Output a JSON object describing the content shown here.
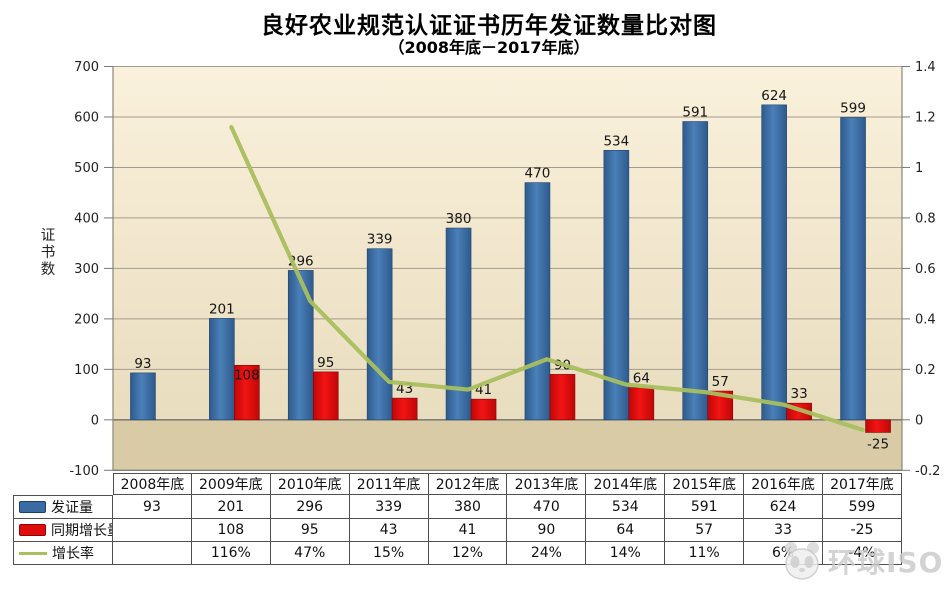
{
  "title": "良好农业规范认证证书历年发证数量比对图",
  "subtitle": "（2008年底－2017年底）",
  "watermark": "环球ISO",
  "colors": {
    "bar_blue": "#3a6ca3",
    "bar_red": "#e00d0d",
    "line_green": "#a9bf5e",
    "plot_bg_top": "#faf1dc",
    "plot_bg_bottom": "#e9ddbf",
    "plot_bg_negative": "#d9cba6",
    "grid": "#a59c8b",
    "zero_line": "#6f6f6f",
    "table_border": "#4f4f4f"
  },
  "chart_data": {
    "type": "bar",
    "title": "良好农业规范认证证书历年发证数量比对图",
    "subtitle": "（2008年底－2017年底）",
    "categories": [
      "2008年底",
      "2009年底",
      "2010年底",
      "2011年底",
      "2012年底",
      "2013年底",
      "2014年底",
      "2015年底",
      "2016年底",
      "2017年底"
    ],
    "series": [
      {
        "name": "发证量",
        "type": "bar",
        "axis": "left",
        "color": "#3a6ca3",
        "values": [
          93,
          201,
          296,
          339,
          380,
          470,
          534,
          591,
          624,
          599
        ]
      },
      {
        "name": "同期增长量",
        "type": "bar",
        "axis": "left",
        "color": "#e00d0d",
        "values": [
          null,
          108,
          95,
          43,
          41,
          90,
          64,
          57,
          33,
          -25
        ]
      },
      {
        "name": "增长率",
        "type": "line",
        "axis": "right",
        "color": "#a9bf5e",
        "values": [
          null,
          1.16,
          0.47,
          0.15,
          0.12,
          0.24,
          0.14,
          0.11,
          0.06,
          -0.04
        ],
        "labels": [
          "",
          "116%",
          "47%",
          "15%",
          "12%",
          "24%",
          "14%",
          "11%",
          "6%",
          "-4%"
        ]
      }
    ],
    "left_axis": {
      "label": "证书数",
      "min": -100,
      "max": 700,
      "step": 100,
      "tick_labels": [
        "700",
        "600",
        "500",
        "400",
        "300",
        "200",
        "100",
        "0",
        "-100"
      ]
    },
    "right_axis": {
      "min": -0.2,
      "max": 1.4,
      "step": 0.2,
      "tick_labels": [
        "1.4",
        "1.2",
        "1",
        "0.8",
        "0.6",
        "0.4",
        "0.2",
        "0",
        "-0.2"
      ]
    },
    "grid": true,
    "legend_position": "table-left"
  },
  "table": {
    "header": [
      "2008年底",
      "2009年底",
      "2010年底",
      "2011年底",
      "2012年底",
      "2013年底",
      "2014年底",
      "2015年底",
      "2016年底",
      "2017年底"
    ],
    "rows": [
      {
        "label": "发证量",
        "swatch": "bar-blue",
        "values": [
          "93",
          "201",
          "296",
          "339",
          "380",
          "470",
          "534",
          "591",
          "624",
          "599"
        ]
      },
      {
        "label": "同期增长量",
        "swatch": "bar-red",
        "values": [
          "",
          "108",
          "95",
          "43",
          "41",
          "90",
          "64",
          "57",
          "33",
          "-25"
        ]
      },
      {
        "label": "增长率",
        "swatch": "line-green",
        "values": [
          "",
          "116%",
          "47%",
          "15%",
          "12%",
          "24%",
          "14%",
          "11%",
          "6%",
          "-4%"
        ]
      }
    ]
  }
}
